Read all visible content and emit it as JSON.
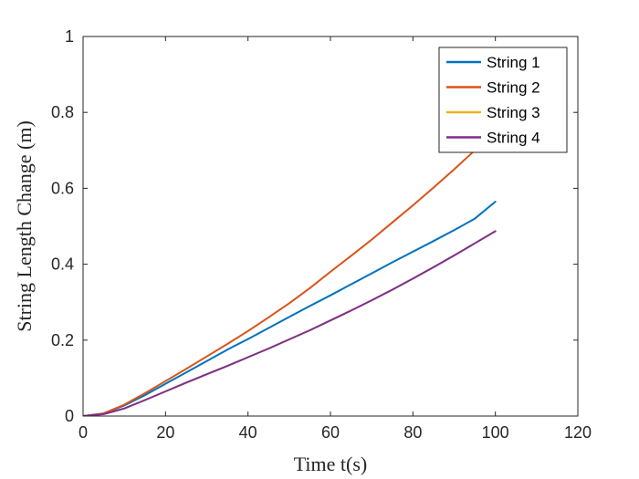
{
  "chart_data": {
    "type": "line",
    "title": "",
    "xlabel": "Time t(s)",
    "ylabel": "String Length Change (m)",
    "xlim": [
      0,
      120
    ],
    "ylim": [
      0,
      1
    ],
    "xticks": [
      "0",
      "20",
      "40",
      "60",
      "80",
      "100",
      "120"
    ],
    "yticks": [
      "0",
      "0.2",
      "0.4",
      "0.6",
      "0.8",
      "1"
    ],
    "xtick_values": [
      0,
      20,
      40,
      60,
      80,
      100,
      120
    ],
    "ytick_values": [
      0,
      0.2,
      0.4,
      0.6,
      0.8,
      1
    ],
    "grid": false,
    "legend_position": "top-right",
    "x": [
      0,
      5,
      10,
      15,
      20,
      25,
      30,
      35,
      40,
      45,
      50,
      55,
      60,
      65,
      70,
      75,
      80,
      85,
      90,
      95,
      100
    ],
    "series": [
      {
        "name": "String 1",
        "color": "#0072BD",
        "values": [
          0,
          0.007,
          0.028,
          0.055,
          0.085,
          0.115,
          0.145,
          0.175,
          0.203,
          0.232,
          0.261,
          0.29,
          0.318,
          0.347,
          0.376,
          0.405,
          0.433,
          0.461,
          0.49,
          0.52,
          0.565
        ]
      },
      {
        "name": "String 2",
        "color": "#D95319",
        "values": [
          0,
          0.007,
          0.03,
          0.06,
          0.092,
          0.124,
          0.157,
          0.19,
          0.224,
          0.26,
          0.297,
          0.337,
          0.38,
          0.422,
          0.465,
          0.51,
          0.555,
          0.602,
          0.65,
          0.7,
          0.75
        ]
      },
      {
        "name": "String 3",
        "color": "#EDB120",
        "values": [
          0,
          0.005,
          0.02,
          0.042,
          0.065,
          0.088,
          0.11,
          0.132,
          0.155,
          0.178,
          0.202,
          0.226,
          0.252,
          0.278,
          0.305,
          0.333,
          0.362,
          0.392,
          0.423,
          0.455,
          0.487
        ]
      },
      {
        "name": "String 4",
        "color": "#7E2F8E",
        "values": [
          0,
          0.005,
          0.02,
          0.042,
          0.065,
          0.088,
          0.11,
          0.132,
          0.155,
          0.178,
          0.202,
          0.226,
          0.252,
          0.278,
          0.305,
          0.333,
          0.362,
          0.392,
          0.423,
          0.455,
          0.487
        ]
      }
    ]
  }
}
